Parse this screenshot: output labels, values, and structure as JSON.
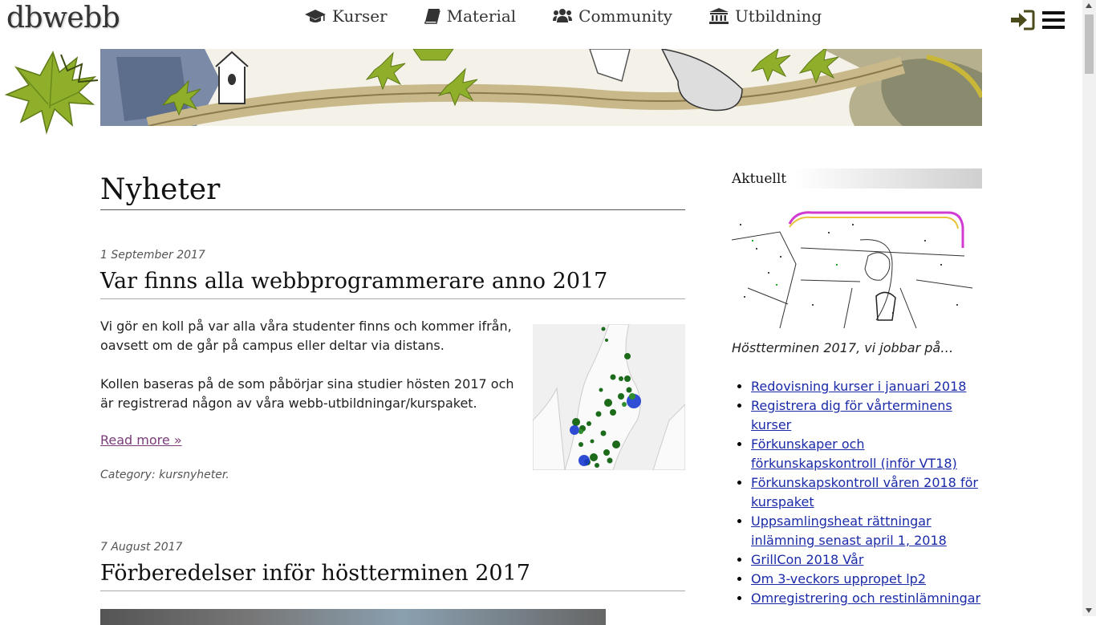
{
  "header": {
    "logo": "dbwebb",
    "nav": [
      {
        "label": "Kurser",
        "icon": "graduation-cap-icon"
      },
      {
        "label": "Material",
        "icon": "book-icon"
      },
      {
        "label": "Community",
        "icon": "users-icon"
      },
      {
        "label": "Utbildning",
        "icon": "institution-icon"
      }
    ],
    "login_icon": "sign-in-icon",
    "menu_icon": "hamburger-menu-icon"
  },
  "main": {
    "page_title": "Nyheter",
    "posts": [
      {
        "date": "1 September 2017",
        "title": "Var finns alla webbprogrammerare anno 2017",
        "paragraphs": [
          "Vi gör en koll på var alla våra studenter finns och kommer ifrån, oavsett om de går på campus eller deltar via distans.",
          "Kollen baseras på de som påbörjar sina studier hösten 2017 och är registrerad någon av våra webb-utbildningar/kurspaket."
        ],
        "read_more": "Read more »",
        "category": "Category: kursnyheter."
      },
      {
        "date": "7 August 2017",
        "title": "Förberedelser inför höstterminen 2017"
      }
    ]
  },
  "sidebar": {
    "heading": "Aktuellt",
    "caption": "Höstterminen 2017, vi jobbar på…",
    "links": [
      "Redovisning kurser i januari 2018",
      "Registrera dig för vårterminens kurser",
      "Förkunskaper och förkunskapskontroll (inför VT18)",
      "Förkunskapskontroll våren 2018 för kurspaket",
      "Uppsamlingsheat rättningar inlämning senast april 1, 2018",
      "GrillCon 2018 Vår",
      "Om 3-veckors uppropet lp2",
      "Omregistrering och restinlämningar"
    ]
  },
  "colors": {
    "link": "#1a2aa8",
    "visited_link": "#7a3b79",
    "leaf_green": "#8fae2a",
    "login_icon": "#4a4a1a"
  }
}
